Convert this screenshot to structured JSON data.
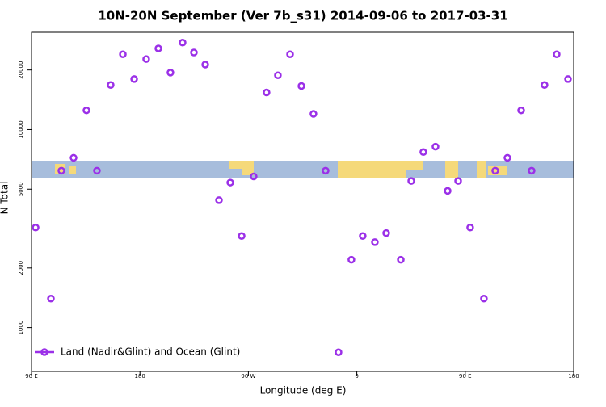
{
  "chart_data": {
    "type": "scatter",
    "title": "10N-20N September (Ver 7b_s31)   2014-09-06 to 2017-03-31",
    "x_label": "Longitude (deg E)",
    "y_label": "N Total",
    "xlim": [
      90,
      540
    ],
    "xticks": [
      {
        "value": 90,
        "label": "90 E"
      },
      180,
      {
        "value": 270,
        "label": "90 W"
      },
      {
        "value": 360,
        "label": "0"
      },
      {
        "value": 450,
        "label": "90 E"
      },
      {
        "value": 540,
        "label": "180"
      }
    ],
    "ylim": [
      600,
      31000
    ],
    "ylog": true,
    "yticks": [
      1000,
      2000,
      5000,
      10000,
      20000
    ],
    "legend": "bottom-left",
    "series": [
      {
        "name": "Land (Nadir&Glint) and Ocean (Glint)",
        "color": "#9b30e8",
        "x": [
          93.4,
          106.1,
          114.8,
          124.9,
          135.6,
          144.3,
          155.7,
          165.8,
          175.2,
          185.2,
          195.3,
          205.3,
          215.4,
          224.8,
          234.2,
          245.6,
          255.0,
          264.4,
          274.4,
          285.1,
          294.5,
          304.6,
          314.0,
          324.0,
          334.1,
          344.8,
          355.5,
          364.9,
          375.0,
          384.4,
          396.5,
          405.2,
          415.2,
          425.3,
          435.4,
          444.1,
          454.1,
          465.5,
          474.9,
          485.0,
          496.4,
          505.1,
          515.8,
          525.9,
          535.3
        ],
        "values": [
          3200,
          1400,
          6200,
          7200,
          12500,
          6200,
          16800,
          24000,
          18000,
          22700,
          25700,
          19400,
          27500,
          24500,
          21300,
          4400,
          5400,
          2900,
          5800,
          15400,
          18800,
          24000,
          16600,
          12000,
          6200,
          750,
          2200,
          2900,
          2700,
          3000,
          2200,
          5500,
          7700,
          8200,
          4900,
          5500,
          3200,
          1400,
          6200,
          7200,
          12500,
          6200,
          16800,
          24000,
          18000
        ]
      }
    ]
  }
}
